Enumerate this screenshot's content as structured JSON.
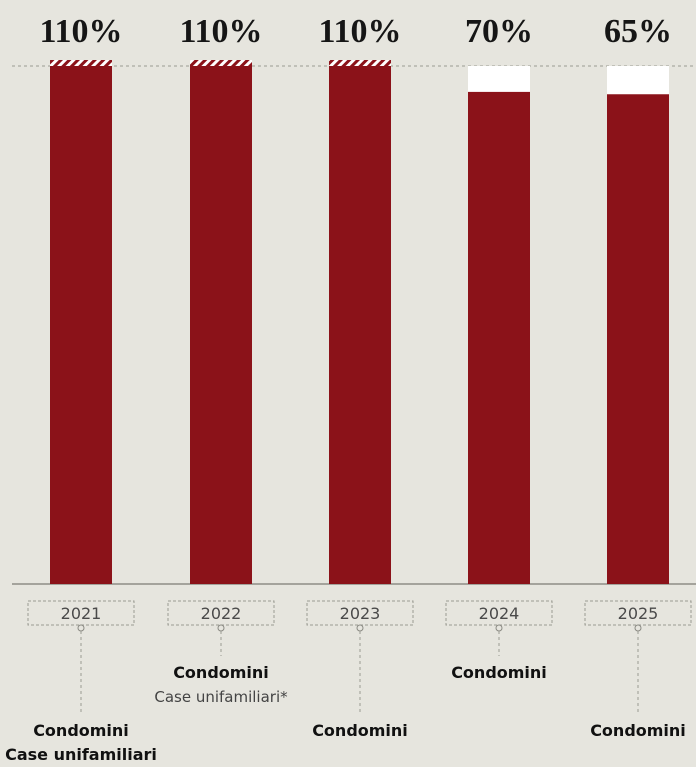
{
  "chart_data": {
    "type": "bar",
    "categories": [
      "2021",
      "2022",
      "2023",
      "2024",
      "2025"
    ],
    "values": [
      110,
      110,
      110,
      70,
      65
    ],
    "value_labels": [
      "110%",
      "110%",
      "110%",
      "70%",
      "65%"
    ],
    "reference_level": 110,
    "ylim": [
      0,
      110
    ],
    "hatched_top": [
      true,
      true,
      true,
      false,
      false
    ],
    "bar_color": "#8b1219",
    "gap_color": "#ffffff",
    "grid": false,
    "annotations": [
      {
        "category": "2021",
        "lines": [
          {
            "text": "Condomini",
            "style": "bold"
          },
          {
            "text": "Case unifamiliari",
            "style": "bold"
          }
        ]
      },
      {
        "category": "2022",
        "lines": [
          {
            "text": "Condomini",
            "style": "bold"
          },
          {
            "text": "Case unifamiliari*",
            "style": "light"
          }
        ]
      },
      {
        "category": "2023",
        "lines": [
          {
            "text": "Condomini",
            "style": "bold"
          }
        ]
      },
      {
        "category": "2024",
        "lines": [
          {
            "text": "Condomini",
            "style": "bold"
          }
        ]
      },
      {
        "category": "2025",
        "lines": [
          {
            "text": "Condomini",
            "style": "bold"
          }
        ]
      }
    ]
  }
}
